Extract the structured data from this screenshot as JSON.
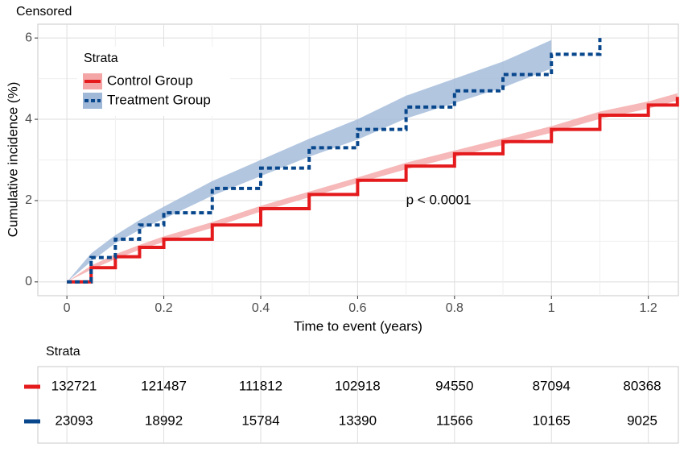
{
  "chart_data": {
    "type": "line",
    "title": "Censored",
    "x_label": "Time to event (years)",
    "y_label": "Cumulative incidence (%)",
    "annotation": "p < 0.0001",
    "legend_title": "Strata",
    "grid": true,
    "xlim": [
      -0.06,
      1.262
    ],
    "ylim": [
      -0.34,
      6.34
    ],
    "xticks": [
      0,
      0.2,
      0.4,
      0.6,
      0.8,
      1,
      1.2
    ],
    "yticks": [
      0,
      2,
      4,
      6
    ],
    "x": [
      0,
      0.05,
      0.1,
      0.15,
      0.2,
      0.3,
      0.4,
      0.5,
      0.6,
      0.7,
      0.8,
      0.9,
      1.0,
      1.1,
      1.2,
      1.26
    ],
    "series": [
      {
        "name": "Control Group",
        "color": "#e41a1c",
        "band_color": "#f4a6a6",
        "dash": "solid",
        "values": [
          0,
          0.35,
          0.62,
          0.85,
          1.05,
          1.4,
          1.8,
          2.15,
          2.5,
          2.85,
          3.15,
          3.45,
          3.75,
          4.1,
          4.35,
          4.55
        ],
        "lower": [
          0,
          0.3,
          0.56,
          0.79,
          0.98,
          1.33,
          1.73,
          2.08,
          2.43,
          2.77,
          3.07,
          3.37,
          3.67,
          4.01,
          4.26,
          4.46
        ],
        "upper": [
          0,
          0.4,
          0.68,
          0.91,
          1.12,
          1.47,
          1.87,
          2.22,
          2.57,
          2.93,
          3.23,
          3.53,
          3.83,
          4.19,
          4.44,
          4.64
        ]
      },
      {
        "name": "Treatment Group",
        "color": "#08478c",
        "band_color": "#9fb8d8",
        "dash": "dashed",
        "values": [
          0,
          0.6,
          1.05,
          1.4,
          1.7,
          2.3,
          2.8,
          3.3,
          3.75,
          4.3,
          4.7,
          5.1,
          5.6,
          6.0,
          null,
          null
        ],
        "lower": [
          0,
          0.5,
          0.95,
          1.28,
          1.55,
          2.12,
          2.6,
          3.08,
          3.5,
          4.02,
          4.4,
          4.78,
          5.25,
          null,
          null,
          null
        ],
        "upper": [
          0,
          0.7,
          1.15,
          1.52,
          1.85,
          2.48,
          3.0,
          3.52,
          4.0,
          4.58,
          5.0,
          5.42,
          5.95,
          null,
          null,
          null
        ]
      }
    ]
  },
  "risk_table": {
    "title": "Strata",
    "rows": [
      {
        "color": "#e41a1c",
        "values": [
          132721,
          121487,
          111812,
          102918,
          94550,
          87094,
          80368
        ]
      },
      {
        "color": "#08478c",
        "values": [
          23093,
          18992,
          15784,
          13390,
          11566,
          10165,
          9025
        ]
      }
    ]
  }
}
